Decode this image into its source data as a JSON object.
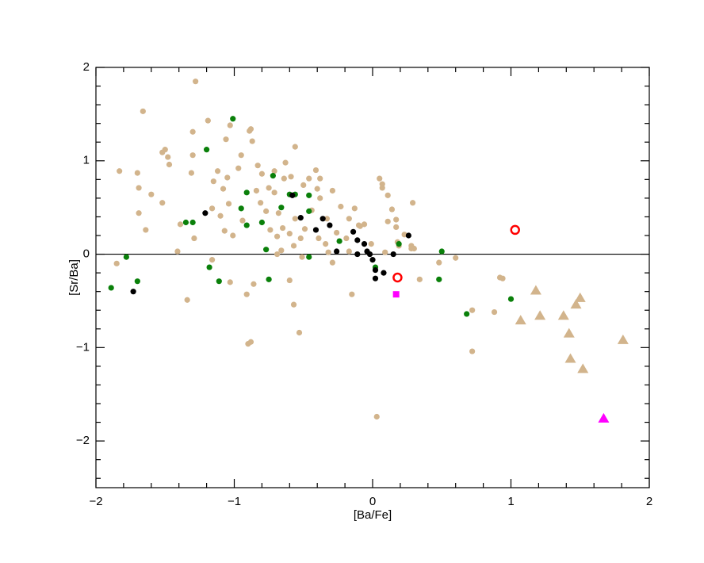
{
  "chart_data": {
    "type": "scatter",
    "xlabel": "[Ba/Fe]",
    "ylabel": "[Sr/Ba]",
    "xlim": [
      -2,
      2
    ],
    "ylim": [
      -2.5,
      2
    ],
    "xticks": [
      {
        "value": -2,
        "label": "−2"
      },
      {
        "value": -1,
        "label": "−1"
      },
      0,
      1,
      2
    ],
    "yticks": [
      {
        "value": -2,
        "label": "−2"
      },
      {
        "value": -1,
        "label": "−1"
      },
      0,
      1,
      2
    ],
    "xminorticks": [
      -1.8,
      -1.6,
      -1.4,
      -1.2,
      -0.8,
      -0.6,
      -0.4,
      -0.2,
      0.2,
      0.4,
      0.6,
      0.8,
      1.2,
      1.4,
      1.6,
      1.8
    ],
    "yminorticks": [
      -2.4,
      -2.2,
      -1.8,
      -1.6,
      -1.4,
      -1.2,
      -0.8,
      -0.6,
      -0.4,
      -0.2,
      0.2,
      0.4,
      0.6,
      0.8,
      1.2,
      1.4,
      1.6,
      1.8
    ],
    "hline": 0,
    "series": [
      {
        "marker": "circle",
        "color": "#d2b48c",
        "x": [
          -1.28,
          -1.66,
          -1.19,
          -1.3,
          -1.06,
          -1.03,
          -0.88,
          -1.52,
          -1.5,
          -1.48,
          -1.47,
          -1.3,
          -1.31,
          -1.83,
          -1.7,
          -1.69,
          -1.6,
          -1.52,
          -1.64,
          -1.69,
          -1.85,
          -1.41,
          -1.34,
          -1.16,
          -1.03,
          -0.91,
          -0.9,
          -0.88,
          -0.86,
          -0.53,
          -0.57,
          -0.56,
          -0.71,
          -0.75,
          -0.83,
          -0.8,
          -0.97,
          -1.05,
          -1.12,
          -1.15,
          -1.16,
          -1.1,
          -1.04,
          -1.01,
          -1.07,
          -1.08,
          -0.89,
          -0.87,
          -0.95,
          -0.63,
          -0.59,
          -0.5,
          -0.41,
          -0.4,
          -0.38,
          -0.29,
          -0.23,
          -0.17,
          -0.13,
          -0.09,
          -0.06,
          0.05,
          0.07,
          0.11,
          0.11,
          0.14,
          0.17,
          0.18,
          0.19,
          0.23,
          0.28,
          0.29,
          0.3,
          0.34,
          -0.15,
          0.03,
          0.07,
          -0.57,
          -0.51,
          -0.69,
          -0.74,
          -0.77,
          -0.81,
          -0.68,
          -0.65,
          -0.6,
          -0.52,
          -0.49,
          -0.56,
          -0.44,
          -0.34,
          -0.26,
          -0.17,
          -0.01,
          0.09,
          0.17,
          0.28,
          0.48,
          0.6,
          0.72,
          0.88,
          0.92,
          0.94,
          0.72,
          -0.69,
          -0.6,
          -0.39,
          -0.71,
          -0.84,
          -0.64,
          -0.46,
          -0.38,
          -0.33,
          -0.1,
          -0.19,
          -0.32,
          -0.29,
          -0.66,
          -0.94,
          -1.29,
          -1.39
        ],
        "y": [
          1.85,
          1.53,
          1.43,
          1.31,
          1.23,
          1.38,
          1.34,
          1.09,
          1.12,
          1.04,
          0.96,
          1.06,
          0.87,
          0.89,
          0.87,
          0.71,
          0.64,
          0.55,
          0.26,
          0.44,
          -0.1,
          0.03,
          -0.49,
          -0.06,
          -0.3,
          -0.43,
          -0.96,
          -0.94,
          -0.32,
          -0.84,
          -0.54,
          1.15,
          0.89,
          0.71,
          0.95,
          0.86,
          0.92,
          0.82,
          0.89,
          0.78,
          0.49,
          0.41,
          0.54,
          0.2,
          0.25,
          0.7,
          1.32,
          1.21,
          1.06,
          0.98,
          0.83,
          0.74,
          0.9,
          0.7,
          0.6,
          0.68,
          0.51,
          0.38,
          0.49,
          0.3,
          0.32,
          0.81,
          0.71,
          0.63,
          0.35,
          0.48,
          0.37,
          0.13,
          0.09,
          0.21,
          0.09,
          0.55,
          0.06,
          -0.27,
          -0.43,
          -1.74,
          0.75,
          0.09,
          -0.03,
          0.19,
          0.26,
          0.46,
          0.55,
          0.44,
          0.28,
          0.22,
          0.17,
          0.27,
          0.38,
          0.47,
          0.11,
          0.23,
          0.03,
          0.11,
          0.02,
          0.29,
          0.06,
          -0.09,
          -0.04,
          -0.6,
          -0.62,
          -0.25,
          -0.26,
          -1.04,
          0.0,
          -0.28,
          0.17,
          0.66,
          0.68,
          0.81,
          0.81,
          0.81,
          0.38,
          0.31,
          0.17,
          0.02,
          -0.09,
          0.04,
          0.36,
          0.17,
          0.32
        ]
      },
      {
        "marker": "circle",
        "color": "#0a800a",
        "x": [
          -1.01,
          -1.2,
          -1.35,
          -1.3,
          -1.89,
          -1.78,
          -1.7,
          -1.18,
          -1.11,
          -0.91,
          -0.95,
          -0.91,
          -0.8,
          -0.72,
          -0.66,
          -0.6,
          -0.56,
          -0.46,
          -0.46,
          -0.46,
          -0.75,
          -0.77,
          -0.24,
          0.02,
          0.19,
          0.5,
          0.48,
          0.68,
          1.0
        ],
        "y": [
          1.45,
          1.12,
          0.34,
          0.34,
          -0.36,
          -0.03,
          -0.29,
          -0.14,
          -0.29,
          0.66,
          0.49,
          0.31,
          0.34,
          0.84,
          0.5,
          0.64,
          0.64,
          0.63,
          0.46,
          -0.03,
          -0.27,
          0.05,
          0.14,
          -0.14,
          0.11,
          0.03,
          -0.27,
          -0.64,
          -0.48
        ]
      },
      {
        "marker": "circle",
        "color": "#000000",
        "x": [
          -1.21,
          -1.73,
          -0.58,
          -0.36,
          -0.41,
          -0.31,
          -0.52,
          -0.26,
          -0.14,
          -0.11,
          -0.06,
          -0.04,
          -0.02,
          0.0,
          0.02,
          0.02,
          0.08,
          0.15,
          0.26,
          -0.11
        ],
        "y": [
          0.44,
          -0.4,
          0.63,
          0.38,
          0.26,
          0.31,
          0.39,
          0.03,
          0.24,
          0.15,
          0.11,
          0.03,
          0.0,
          -0.06,
          -0.17,
          -0.26,
          -0.2,
          0.0,
          0.2,
          0.0
        ]
      },
      {
        "marker": "triangle",
        "color": "#d2b48c",
        "x": [
          1.18,
          1.07,
          1.21,
          1.38,
          1.47,
          1.5,
          1.42,
          1.43,
          1.52,
          1.81
        ],
        "y": [
          -0.39,
          -0.71,
          -0.66,
          -0.66,
          -0.54,
          -0.47,
          -0.85,
          -1.12,
          -1.23,
          -0.92
        ]
      },
      {
        "marker": "circle-open",
        "color": "#ff0000",
        "x": [
          1.03,
          0.18
        ],
        "y": [
          0.26,
          -0.25
        ]
      },
      {
        "marker": "square",
        "color": "#ff00ff",
        "x": [
          0.17
        ],
        "y": [
          -0.43
        ]
      },
      {
        "marker": "triangle",
        "color": "#ff00ff",
        "x": [
          1.67
        ],
        "y": [
          -1.76
        ]
      }
    ]
  }
}
